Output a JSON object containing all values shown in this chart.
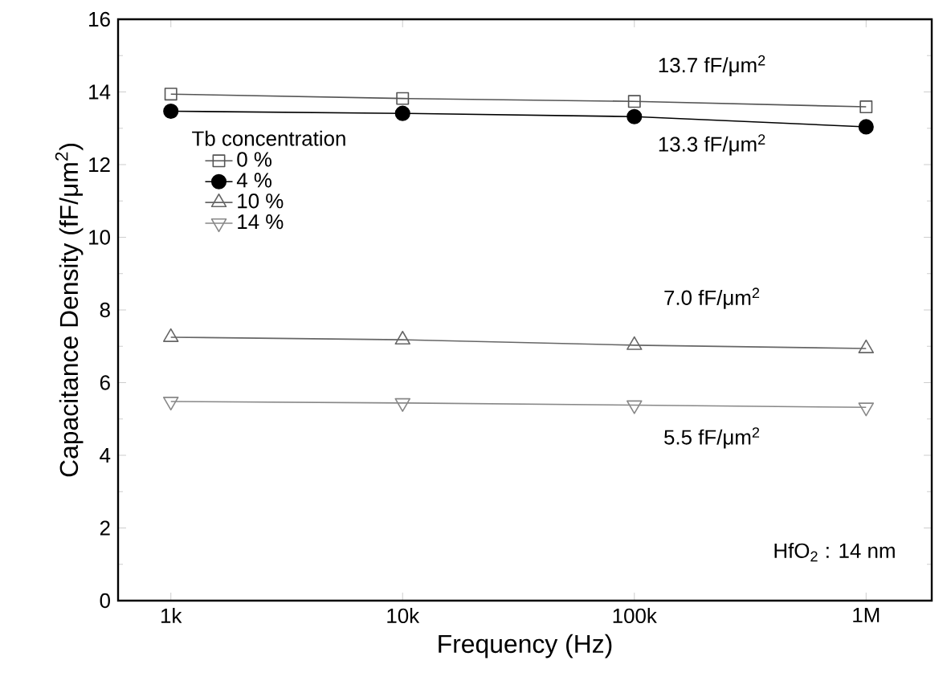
{
  "chart_data": {
    "type": "line",
    "xlabel": "Frequency (Hz)",
    "ylabel": "Capacitance Density (fF/μm$^{2}$)",
    "legend_title": "Tb concentration",
    "x": [
      1000,
      10000,
      100000,
      1000000
    ],
    "xlim": [
      592,
      1920000
    ],
    "xticks": [
      {
        "value": 1000,
        "label": "1k"
      },
      {
        "value": 10000,
        "label": "10k"
      },
      {
        "value": 100000,
        "label": "100k"
      },
      {
        "value": 1000000,
        "label": "1M"
      }
    ],
    "ylim": [
      0,
      16
    ],
    "yticks": [
      0,
      2,
      4,
      6,
      8,
      10,
      12,
      14,
      16
    ],
    "log": "x",
    "grid": false,
    "legend": "top left",
    "line_style": "solid",
    "series": [
      {
        "name": "0 %",
        "color": "#555555",
        "marker": "square",
        "values": [
          13.94,
          13.82,
          13.74,
          13.59
        ]
      },
      {
        "name": "4 %",
        "color": "#000000",
        "marker": "circle",
        "values": [
          13.47,
          13.41,
          13.32,
          13.04
        ]
      },
      {
        "name": "10 %",
        "color": "#666666",
        "marker": "triangle",
        "values": [
          7.25,
          7.18,
          7.03,
          6.94
        ]
      },
      {
        "name": "14 %",
        "color": "#888888",
        "marker": "triangle down",
        "values": [
          5.48,
          5.44,
          5.38,
          5.32
        ]
      }
    ],
    "annotations": [
      "13.7 fF/μm$^{2}$",
      "13.3 fF/μm$^{2}$",
      "7.0 fF/μm$^{2}$",
      "5.5 fF/μm$^{2}$",
      "HfO$_{2}$ : 14 nm"
    ]
  }
}
